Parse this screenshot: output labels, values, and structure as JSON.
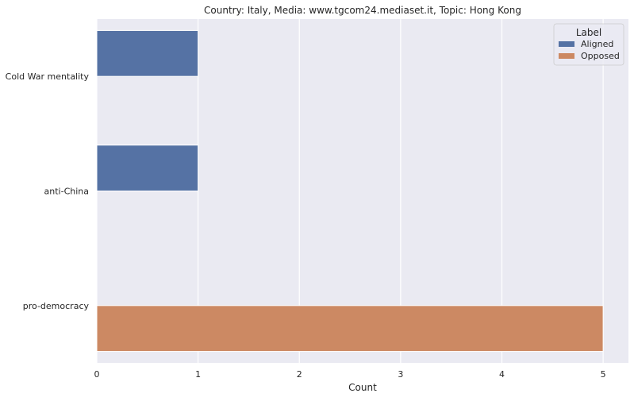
{
  "chart_data": {
    "type": "bar",
    "orientation": "horizontal",
    "title": "Country: Italy, Media: www.tgcom24.mediaset.it, Topic: Hong Kong",
    "xlabel": "Count",
    "ylabel": "",
    "categories": [
      "Cold War mentality",
      "anti-China",
      "pro-democracy"
    ],
    "xlim": [
      0,
      5.25
    ],
    "x_ticks": [
      "0",
      "1",
      "2",
      "3",
      "4",
      "5"
    ],
    "grid": true,
    "legend": {
      "title": "Label",
      "placement": "top-right"
    },
    "series": [
      {
        "name": "Aligned",
        "color": "#5572a4",
        "values": [
          1,
          1,
          0
        ]
      },
      {
        "name": "Opposed",
        "color": "#cc8963",
        "values": [
          0,
          0,
          5
        ]
      }
    ],
    "background_color": "#eaeaf2"
  }
}
